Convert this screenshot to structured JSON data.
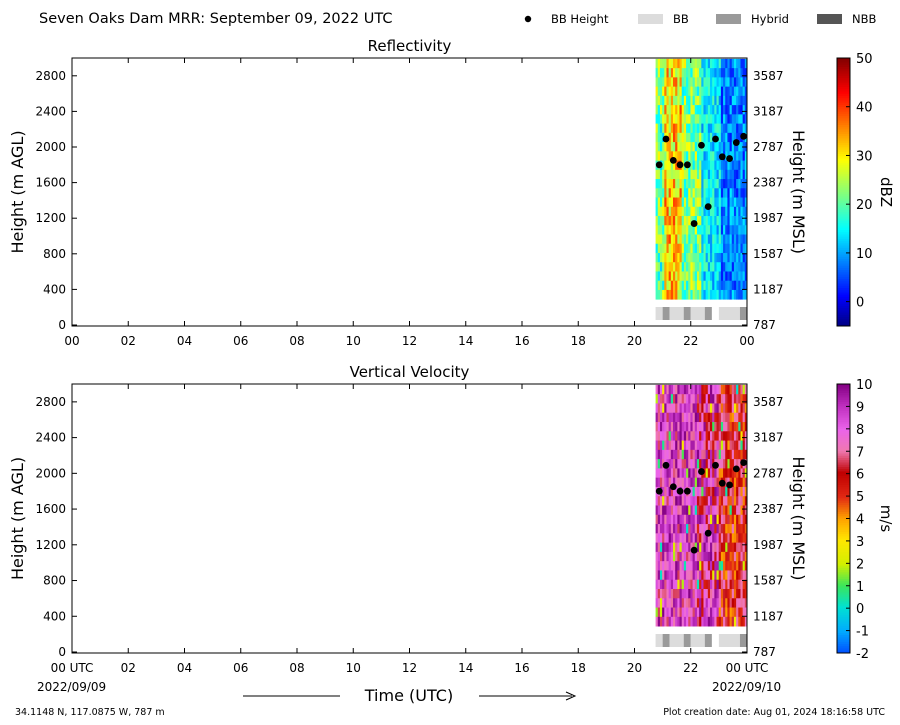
{
  "header": {
    "title": "Seven Oaks Dam MRR:  September 09, 2022 UTC",
    "legend": [
      {
        "label": "BB Height",
        "kind": "dot",
        "color": "#000000"
      },
      {
        "label": "BB",
        "kind": "box",
        "color": "#dcdcdc"
      },
      {
        "label": "Hybrid",
        "kind": "box",
        "color": "#9a9a9a"
      },
      {
        "label": "NBB",
        "kind": "box",
        "color": "#555555"
      }
    ]
  },
  "footer": {
    "coords": "34.1148 N, 117.0875 W, 787 m",
    "creation": "Plot creation date: Aug 01, 2024 18:16:58 UTC",
    "xlabel": "Time (UTC)",
    "start_label": "00 UTC",
    "end_label": "00 UTC",
    "start_date": "2022/09/09",
    "end_date": "2022/09/10"
  },
  "chart_data": [
    {
      "type": "heatmap",
      "title": "Reflectivity",
      "ylabel": "Height (m AGL)",
      "ylabel_right": "Height (m MSL)",
      "xlabel": "Time (UTC)",
      "x_ticks": [
        "00",
        "02",
        "04",
        "06",
        "08",
        "10",
        "12",
        "14",
        "16",
        "18",
        "20",
        "22",
        "00"
      ],
      "xlim_hours": [
        0,
        24
      ],
      "ylim": [
        0,
        3000
      ],
      "y_ticks": [
        0,
        400,
        800,
        1200,
        1600,
        2000,
        2400,
        2800
      ],
      "y_ticks_right": [
        "787",
        "1187",
        "1587",
        "1987",
        "2387",
        "2787",
        "3187",
        "3587"
      ],
      "colorbar": {
        "label": "dBZ",
        "min": -5,
        "max": 50,
        "ticks": [
          0,
          10,
          20,
          30,
          40,
          50
        ],
        "colormap": "jet"
      },
      "data_extent": {
        "time_start_hours": 20.75,
        "time_end_hours": 24,
        "height_min": 290,
        "height_max": 2990
      },
      "bb_height": [
        {
          "t": 20.88,
          "h": 1800
        },
        {
          "t": 21.12,
          "h": 2090
        },
        {
          "t": 21.38,
          "h": 1850
        },
        {
          "t": 21.62,
          "h": 1800
        },
        {
          "t": 21.88,
          "h": 1800
        },
        {
          "t": 22.12,
          "h": 1140
        },
        {
          "t": 22.38,
          "h": 2020
        },
        {
          "t": 22.62,
          "h": 1330
        },
        {
          "t": 22.88,
          "h": 2090
        },
        {
          "t": 23.12,
          "h": 1890
        },
        {
          "t": 23.38,
          "h": 1870
        },
        {
          "t": 23.62,
          "h": 2050
        },
        {
          "t": 23.88,
          "h": 2120
        }
      ],
      "bb_type": [
        {
          "t0": 20.75,
          "t1": 21.0,
          "type": "BB"
        },
        {
          "t0": 21.0,
          "t1": 21.25,
          "type": "Hybrid"
        },
        {
          "t0": 21.25,
          "t1": 21.75,
          "type": "BB"
        },
        {
          "t0": 21.75,
          "t1": 22.0,
          "type": "Hybrid"
        },
        {
          "t0": 22.0,
          "t1": 22.5,
          "type": "BB"
        },
        {
          "t0": 22.5,
          "t1": 22.75,
          "type": "Hybrid"
        },
        {
          "t0": 23.0,
          "t1": 23.75,
          "type": "BB"
        },
        {
          "t0": 23.75,
          "t1": 24.0,
          "type": "Hybrid"
        }
      ]
    },
    {
      "type": "heatmap",
      "title": "Vertical Velocity",
      "ylabel": "Height (m AGL)",
      "ylabel_right": "Height (m MSL)",
      "xlabel": "Time (UTC)",
      "x_ticks": [
        "00",
        "02",
        "04",
        "06",
        "08",
        "10",
        "12",
        "14",
        "16",
        "18",
        "20",
        "22",
        "00"
      ],
      "xlim_hours": [
        0,
        24
      ],
      "ylim": [
        0,
        3000
      ],
      "y_ticks": [
        0,
        400,
        800,
        1200,
        1600,
        2000,
        2400,
        2800
      ],
      "y_ticks_right": [
        "787",
        "1187",
        "1587",
        "1987",
        "2387",
        "2787",
        "3187",
        "3587"
      ],
      "colorbar": {
        "label": "m/s",
        "min": -2,
        "max": 10,
        "ticks": [
          -2,
          -1,
          0,
          1,
          2,
          3,
          4,
          5,
          6,
          7,
          8,
          9,
          10
        ],
        "colormap": "velocity"
      },
      "data_extent": {
        "time_start_hours": 20.75,
        "time_end_hours": 24,
        "height_min": 290,
        "height_max": 2990
      },
      "bb_height": [
        {
          "t": 20.88,
          "h": 1800
        },
        {
          "t": 21.12,
          "h": 2090
        },
        {
          "t": 21.38,
          "h": 1850
        },
        {
          "t": 21.62,
          "h": 1800
        },
        {
          "t": 21.88,
          "h": 1800
        },
        {
          "t": 22.12,
          "h": 1140
        },
        {
          "t": 22.38,
          "h": 2020
        },
        {
          "t": 22.62,
          "h": 1330
        },
        {
          "t": 22.88,
          "h": 2090
        },
        {
          "t": 23.12,
          "h": 1890
        },
        {
          "t": 23.38,
          "h": 1870
        },
        {
          "t": 23.62,
          "h": 2050
        },
        {
          "t": 23.88,
          "h": 2120
        }
      ],
      "bb_type": [
        {
          "t0": 20.75,
          "t1": 21.0,
          "type": "BB"
        },
        {
          "t0": 21.0,
          "t1": 21.25,
          "type": "Hybrid"
        },
        {
          "t0": 21.25,
          "t1": 21.75,
          "type": "BB"
        },
        {
          "t0": 21.75,
          "t1": 22.0,
          "type": "Hybrid"
        },
        {
          "t0": 22.0,
          "t1": 22.5,
          "type": "BB"
        },
        {
          "t0": 22.5,
          "t1": 22.75,
          "type": "Hybrid"
        },
        {
          "t0": 23.0,
          "t1": 23.75,
          "type": "BB"
        },
        {
          "t0": 23.75,
          "t1": 24.0,
          "type": "Hybrid"
        }
      ]
    }
  ]
}
